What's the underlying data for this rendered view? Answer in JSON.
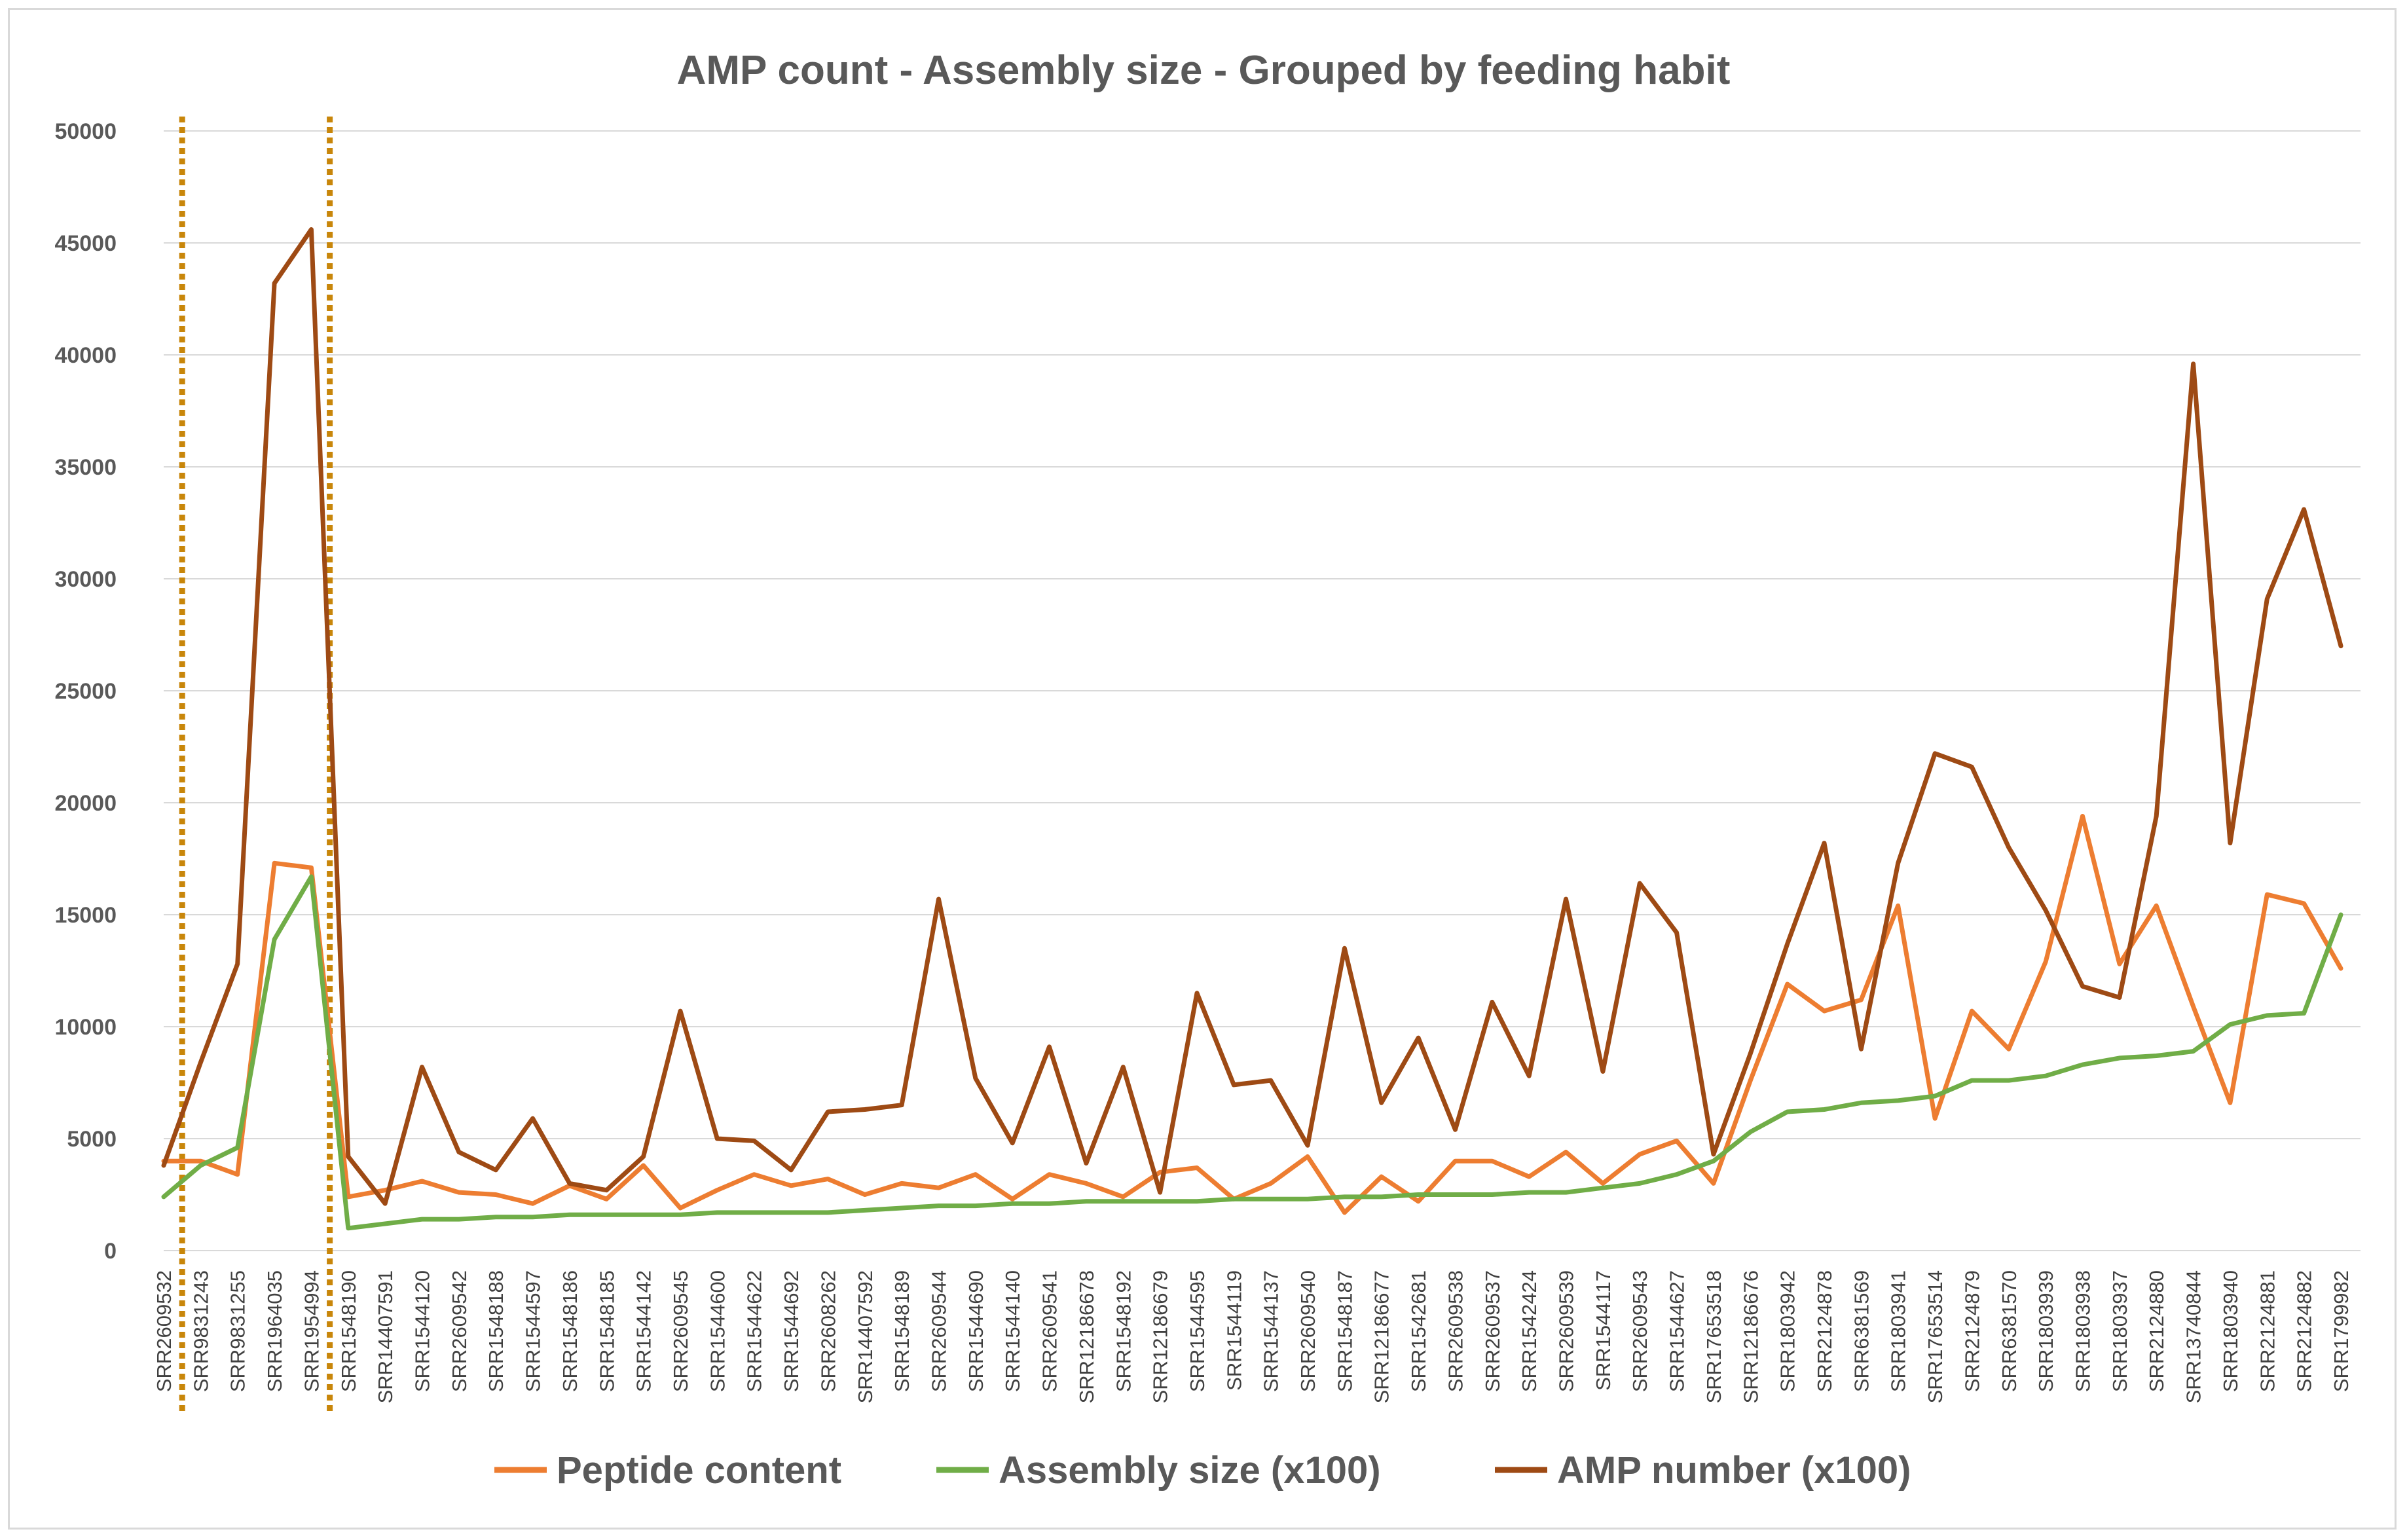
{
  "chart_data": {
    "type": "line",
    "title": "AMP count - Assembly size - Grouped by feeding habit",
    "xlabel": "",
    "ylabel": "",
    "ylim": [
      0,
      50000
    ],
    "yticks": [
      0,
      5000,
      10000,
      15000,
      20000,
      25000,
      30000,
      35000,
      40000,
      45000,
      50000
    ],
    "grid": "horizontal",
    "legend": "bottom",
    "categories": [
      "SRR2609532",
      "SRR9831243",
      "SRR9831255",
      "SRR1964035",
      "SRR1954994",
      "SRR1548190",
      "SRR14407591",
      "SRR1544120",
      "SRR2609542",
      "SRR1548188",
      "SRR1544597",
      "SRR1548186",
      "SRR1548185",
      "SRR1544142",
      "SRR2609545",
      "SRR1544600",
      "SRR1544622",
      "SRR1544692",
      "SRR2608262",
      "SRR14407592",
      "SRR1548189",
      "SRR2609544",
      "SRR1544690",
      "SRR1544140",
      "SRR2609541",
      "SRR12186678",
      "SRR1548192",
      "SRR12186679",
      "SRR1544595",
      "SRR1544119",
      "SRR1544137",
      "SRR2609540",
      "SRR1548187",
      "SRR12186677",
      "SRR1542681",
      "SRR2609538",
      "SRR2609537",
      "SRR1542424",
      "SRR2609539",
      "SRR1544117",
      "SRR2609543",
      "SRR1544627",
      "SRR17653518",
      "SRR12186676",
      "SRR1803942",
      "SRR2124878",
      "SRR6381569",
      "SRR1803941",
      "SRR17653514",
      "SRR2124879",
      "SRR6381570",
      "SRR1803939",
      "SRR1803938",
      "SRR1803937",
      "SRR2124880",
      "SRR13740844",
      "SRR1803940",
      "SRR2124881",
      "SRR2124882",
      "SRR1799982"
    ],
    "series": [
      {
        "name": "Peptide content",
        "color": "#ed7d31",
        "values": [
          4000,
          4000,
          3400,
          17300,
          17100,
          2400,
          2700,
          3100,
          2600,
          2500,
          2100,
          2900,
          2300,
          3800,
          1900,
          2700,
          3400,
          2900,
          3200,
          2500,
          3000,
          2800,
          3400,
          2300,
          3400,
          3000,
          2400,
          3500,
          3700,
          2300,
          3000,
          4200,
          1700,
          3300,
          2200,
          4000,
          4000,
          3300,
          4400,
          3000,
          4300,
          4900,
          3000,
          7600,
          11900,
          10700,
          11200,
          15400,
          5900,
          10700,
          9000,
          12900,
          19400,
          12800,
          15400,
          10900,
          6600,
          15900,
          15500,
          12600
        ]
      },
      {
        "name": "Assembly size (x100)",
        "color": "#70ad47",
        "values": [
          2400,
          3800,
          4600,
          13900,
          16700,
          1000,
          1200,
          1400,
          1400,
          1500,
          1500,
          1600,
          1600,
          1600,
          1600,
          1700,
          1700,
          1700,
          1700,
          1800,
          1900,
          2000,
          2000,
          2100,
          2100,
          2200,
          2200,
          2200,
          2200,
          2300,
          2300,
          2300,
          2400,
          2400,
          2500,
          2500,
          2500,
          2600,
          2600,
          2800,
          3000,
          3400,
          4000,
          5300,
          6200,
          6300,
          6600,
          6700,
          6900,
          7600,
          7600,
          7800,
          8300,
          8600,
          8700,
          8900,
          10100,
          10500,
          10600,
          15000
        ]
      },
      {
        "name": "AMP number (x100)",
        "color": "#9e4a14",
        "values": [
          3800,
          8400,
          12800,
          43200,
          45600,
          4200,
          2100,
          8200,
          4400,
          3600,
          5900,
          3000,
          2700,
          4200,
          10700,
          5000,
          4900,
          3600,
          6200,
          6300,
          6500,
          15700,
          7700,
          4800,
          9100,
          3900,
          8200,
          2600,
          11500,
          7400,
          7600,
          4700,
          13500,
          6600,
          9500,
          5400,
          11100,
          7800,
          15700,
          8000,
          16400,
          14200,
          4300,
          8800,
          13700,
          18200,
          9000,
          17300,
          22200,
          21600,
          18000,
          15200,
          11800,
          11300,
          19400,
          39600,
          18200,
          29100,
          33100,
          27000
        ]
      }
    ],
    "annotations": [
      {
        "type": "vertical-dotted-line",
        "between": [
          "SRR2609532",
          "SRR9831243"
        ],
        "color": "#c8860a"
      },
      {
        "type": "vertical-dotted-line",
        "between": [
          "SRR1954994",
          "SRR1548190"
        ],
        "color": "#c8860a"
      }
    ]
  }
}
